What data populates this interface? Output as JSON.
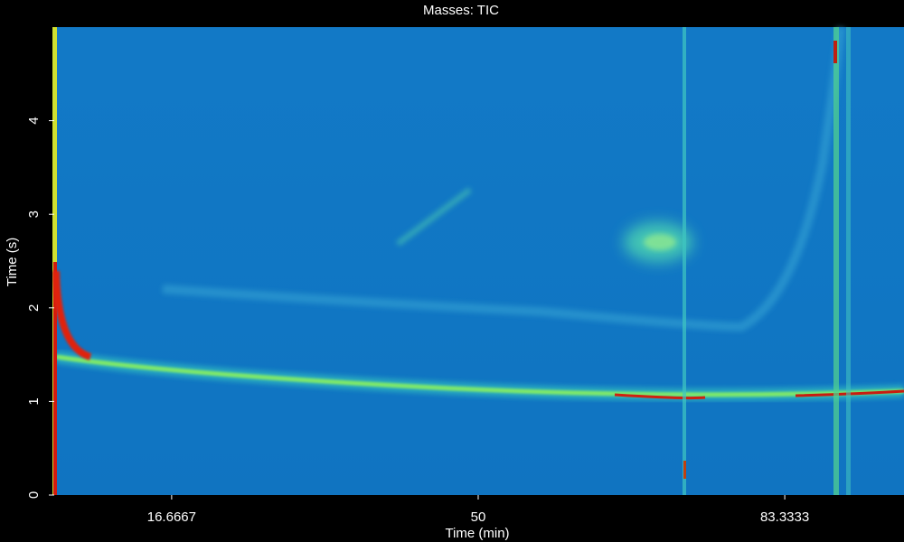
{
  "chart_data": {
    "type": "heatmap",
    "title": "Masses:  TIC",
    "x_label": "Time (min)",
    "y_label": "Time (s)",
    "xlim": [
      3.9,
      96.3
    ],
    "xticks": [
      16.6667,
      50,
      83.3333
    ],
    "ylim": [
      0,
      5
    ],
    "yticks": [
      0,
      1,
      2,
      3,
      4
    ]
  }
}
